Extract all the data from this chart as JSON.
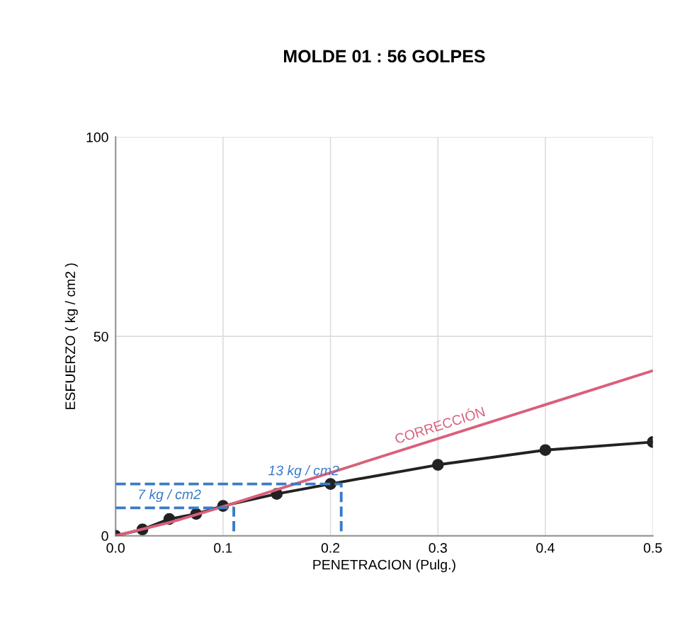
{
  "chart_data": {
    "type": "line",
    "title": "MOLDE 01 : 56 GOLPES",
    "xlabel": "PENETRACION (Pulg.)",
    "ylabel": "ESFUERZO ( kg / cm2 )",
    "xlim": [
      0,
      0.5
    ],
    "xticks": [
      {
        "value": 0,
        "label": "0.0"
      },
      0.1,
      0.2,
      0.3,
      0.4,
      0.5
    ],
    "ylim": [
      0,
      100
    ],
    "yticks": [
      0,
      50,
      100
    ],
    "grid": true,
    "legend": false,
    "series": [
      {
        "color": "#222222",
        "marker": "circle",
        "line_style": "solid",
        "x": [
          0,
          0.025,
          0.05,
          0.075,
          0.1,
          0.15,
          0.2,
          0.3,
          0.4,
          0.5
        ],
        "values": [
          0,
          1.6,
          4.2,
          5.5,
          7.5,
          10.5,
          13,
          17.8,
          21.5,
          23.5
        ]
      },
      {
        "name": "CORRECCIÓN",
        "color": "#d9607a",
        "marker": "none",
        "line_style": "solid",
        "x": [
          0,
          0.05,
          0.1,
          0.5
        ],
        "values": [
          0,
          3.3,
          7.3,
          41.4
        ]
      },
      {
        "color": "#3a7bc8",
        "marker": "none",
        "line_style": "dashed",
        "x": [
          0,
          0.11,
          0.11
        ],
        "values": [
          7,
          7,
          0
        ]
      },
      {
        "color": "#3a7bc8",
        "marker": "none",
        "line_style": "dashed",
        "x": [
          0,
          0.21,
          0.21
        ],
        "values": [
          13,
          13,
          0
        ]
      }
    ],
    "annotations": [
      {
        "text": "7 kg / cm2",
        "x": 0.05,
        "y": 7
      },
      {
        "text": "13 kg / cm2",
        "x": 0.175,
        "y": 13
      }
    ]
  }
}
